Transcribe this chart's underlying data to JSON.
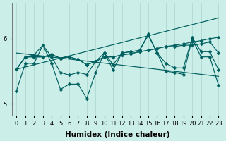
{
  "xlabel": "Humidex (Indice chaleur)",
  "bg_color": "#cceee8",
  "line_color": "#006060",
  "grid_color": "#aad4cc",
  "x_ticks": [
    0,
    1,
    2,
    3,
    4,
    5,
    6,
    7,
    8,
    9,
    10,
    11,
    12,
    13,
    14,
    15,
    16,
    17,
    18,
    19,
    20,
    21,
    22,
    23
  ],
  "y_ticks": [
    5,
    6
  ],
  "ylim": [
    4.82,
    6.55
  ],
  "xlim": [
    -0.5,
    23.5
  ],
  "series": [
    [
      5.53,
      5.72,
      5.72,
      5.72,
      5.75,
      5.7,
      5.72,
      5.68,
      5.6,
      5.65,
      5.72,
      5.72,
      5.75,
      5.77,
      5.8,
      5.82,
      5.85,
      5.88,
      5.9,
      5.92,
      5.95,
      5.97,
      6.0,
      6.02
    ],
    [
      5.53,
      5.72,
      5.72,
      5.72,
      5.76,
      5.7,
      5.72,
      5.68,
      5.6,
      5.65,
      5.72,
      5.72,
      5.75,
      5.77,
      5.8,
      5.82,
      5.85,
      5.88,
      5.88,
      5.9,
      5.9,
      5.92,
      5.95,
      5.78
    ],
    [
      5.53,
      5.72,
      5.75,
      5.9,
      5.72,
      5.48,
      5.44,
      5.48,
      5.45,
      5.65,
      5.78,
      5.6,
      5.78,
      5.8,
      5.82,
      6.05,
      5.78,
      5.62,
      5.55,
      5.55,
      6.02,
      5.8,
      5.8,
      5.52
    ],
    [
      5.2,
      5.62,
      5.62,
      5.9,
      5.62,
      5.22,
      5.3,
      5.3,
      5.08,
      5.48,
      5.78,
      5.52,
      5.78,
      5.8,
      5.82,
      6.07,
      5.78,
      5.5,
      5.48,
      5.45,
      6.0,
      5.72,
      5.72,
      5.28
    ]
  ],
  "trend_series": [
    {
      "start": 5.53,
      "end": 6.32
    },
    {
      "start": 5.78,
      "end": 5.42
    }
  ],
  "marker_size": 2.5,
  "line_width": 0.85,
  "tick_fontsize": 6,
  "label_fontsize": 7.5
}
